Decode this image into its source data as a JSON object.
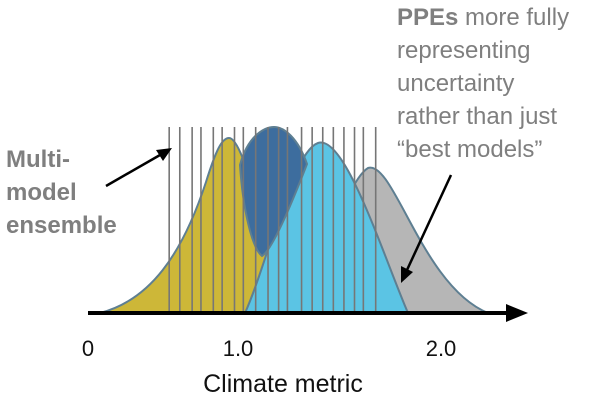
{
  "annotations": {
    "right": {
      "bold_word": "PPEs",
      "line1_rest": " more fully",
      "line2": "representing",
      "line3": "uncertainty",
      "line4": "rather than just",
      "line5": "“best models”"
    },
    "left": {
      "line1": "Multi-",
      "line2": "model",
      "line3": "ensemble"
    }
  },
  "axis": {
    "title": "Climate metric",
    "ticks": [
      {
        "value": 0,
        "label": "0"
      },
      {
        "value": 1.0,
        "label": "1.0"
      },
      {
        "value": 2.0,
        "label": "2.0"
      }
    ]
  },
  "colors": {
    "yellow": "#cdb738",
    "blue": "#3d6d9e",
    "cyan": "#5bc4e4",
    "gray": "#b6b6b6",
    "outline": "#5e7f92",
    "ensemble_line": "#767676",
    "axis": "#000000",
    "annotation_text": "#7f7f7f"
  },
  "chart_data": {
    "type": "area",
    "xlabel": "Climate metric",
    "xlim": [
      0,
      2.2
    ],
    "ensemble_members": [
      0.46,
      0.52,
      0.59,
      0.64,
      0.71,
      0.76,
      0.83,
      0.88,
      0.95,
      1.02,
      1.08,
      1.13,
      1.21,
      1.27,
      1.33,
      1.39,
      1.45,
      1.51,
      1.56,
      1.63
    ],
    "series": [
      {
        "color": "yellow",
        "peak": 0.96
      },
      {
        "color": "blue",
        "peak": 1.3
      },
      {
        "color": "cyan",
        "peak": 1.42
      },
      {
        "color": "gray",
        "peak": 1.8
      }
    ]
  }
}
